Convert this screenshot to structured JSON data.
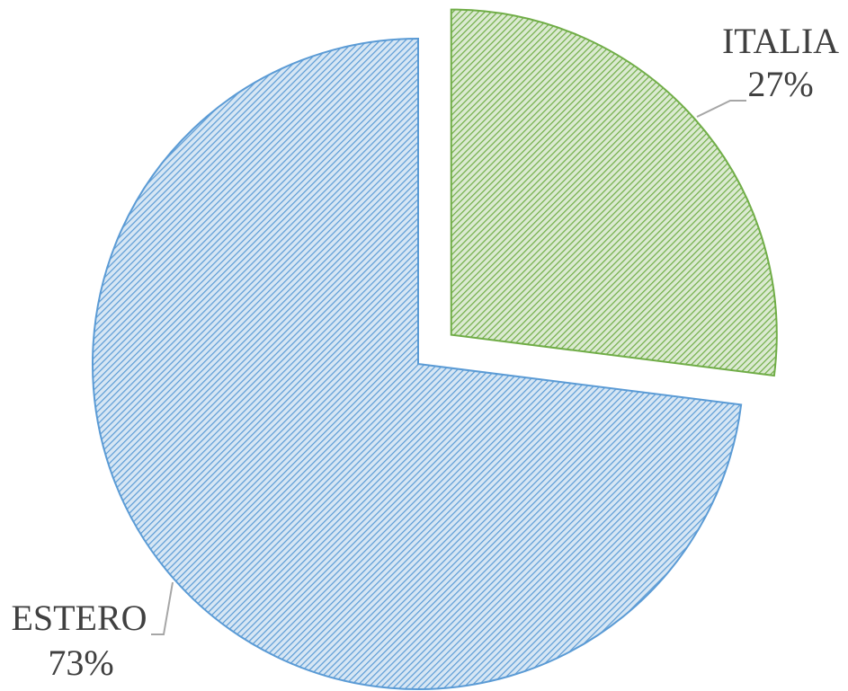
{
  "chart_data": {
    "type": "pie",
    "categories": [
      "ITALIA",
      "ESTERO"
    ],
    "values": [
      27,
      73
    ],
    "value_labels": [
      "27%",
      "73%"
    ],
    "colors": [
      "#70ad47",
      "#5b9bd5"
    ]
  }
}
